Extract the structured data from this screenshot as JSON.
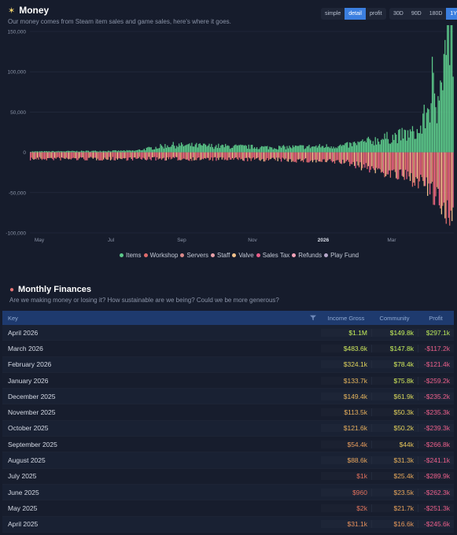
{
  "money": {
    "title": "Money",
    "subtitle": "Our money comes from Steam item sales and game sales, here's where it goes.",
    "mode_options": [
      "simple",
      "detail",
      "profit"
    ],
    "mode_selected": "detail",
    "range_options": [
      "30D",
      "90D",
      "180D",
      "1Y"
    ],
    "range_selected": "1Y"
  },
  "chart_data": {
    "type": "bar",
    "title": "",
    "y_ticks": [
      "150,000",
      "100,000",
      "50,000",
      "0",
      "-50,000",
      "-100,000"
    ],
    "x_ticks": [
      "May",
      "Jul",
      "Sep",
      "Nov",
      "2026",
      "Mar"
    ],
    "ylim": [
      -100000,
      150000
    ],
    "grid": true,
    "legend_placement": "bottom-center",
    "series": [
      {
        "name": "Items",
        "color": "#5cc98a"
      },
      {
        "name": "Workshop",
        "color": "#e06c6c"
      },
      {
        "name": "Servers",
        "color": "#d98a8a"
      },
      {
        "name": "Staff",
        "color": "#e8a0a8"
      },
      {
        "name": "Valve",
        "color": "#f2c28c"
      },
      {
        "name": "Sales Tax",
        "color": "#ec5f8a"
      },
      {
        "name": "Refunds",
        "color": "#f3a2b8"
      },
      {
        "name": "Play Fund",
        "color": "#b6a7c9"
      }
    ],
    "approx_daily_trend": [
      {
        "x": "Apr 2025",
        "income": 1000,
        "expenses": -8000
      },
      {
        "x": "Jul 2025",
        "income": 2000,
        "expenses": -8000
      },
      {
        "x": "Aug 2025",
        "income": 9000,
        "expenses": -8000
      },
      {
        "x": "Nov 2025",
        "income": 6000,
        "expenses": -9000
      },
      {
        "x": "Jan 2026",
        "income": 8000,
        "expenses": -12000
      },
      {
        "x": "Mar 2026",
        "income": 25000,
        "expenses": -35000
      },
      {
        "x": "Apr 2026",
        "income": 140000,
        "expenses": -78000
      }
    ]
  },
  "finances": {
    "title": "Monthly Finances",
    "subtitle": "Are we making money or losing it? How sustainable are we being? Could we be more generous?",
    "columns": {
      "key": "Key",
      "income": "Income Gross",
      "community": "Community",
      "profit": "Profit"
    },
    "rows": [
      {
        "month": "April 2026",
        "income": "$1.1M",
        "community": "$149.8k",
        "profit": "$297.1k",
        "ic": "#c6f05a",
        "cc": "#c6f05a",
        "pc": "#b9e85a"
      },
      {
        "month": "March 2026",
        "income": "$483.6k",
        "community": "$147.8k",
        "profit": "-$117.2k",
        "ic": "#cfe85c",
        "cc": "#c6f05a",
        "pc": "#ec5f8a"
      },
      {
        "month": "February 2026",
        "income": "$324.1k",
        "community": "$78.4k",
        "profit": "-$121.4k",
        "ic": "#e1d45c",
        "cc": "#d2e85a",
        "pc": "#ec5f8a"
      },
      {
        "month": "January 2026",
        "income": "$133.7k",
        "community": "$75.8k",
        "profit": "-$259.2k",
        "ic": "#e6b55c",
        "cc": "#d2e85a",
        "pc": "#ec5f8a"
      },
      {
        "month": "December 2025",
        "income": "$149.4k",
        "community": "$61.9k",
        "profit": "-$235.2k",
        "ic": "#e6b55c",
        "cc": "#dad85a",
        "pc": "#ec5f8a"
      },
      {
        "month": "November 2025",
        "income": "$113.5k",
        "community": "$50.3k",
        "profit": "-$235.3k",
        "ic": "#e6ae5c",
        "cc": "#e2d05a",
        "pc": "#ec5f8a"
      },
      {
        "month": "October 2025",
        "income": "$121.6k",
        "community": "$50.2k",
        "profit": "-$239.3k",
        "ic": "#e6ae5c",
        "cc": "#e2d05a",
        "pc": "#ec5f8a"
      },
      {
        "month": "September 2025",
        "income": "$54.4k",
        "community": "$44k",
        "profit": "-$266.8k",
        "ic": "#e69c5c",
        "cc": "#e6c45a",
        "pc": "#ec5f8a"
      },
      {
        "month": "August 2025",
        "income": "$88.6k",
        "community": "$31.3k",
        "profit": "-$241.1k",
        "ic": "#e6a45c",
        "cc": "#e6b05a",
        "pc": "#ec5f8a"
      },
      {
        "month": "July 2025",
        "income": "$1k",
        "community": "$25.4k",
        "profit": "-$289.9k",
        "ic": "#e0705c",
        "cc": "#e6a85a",
        "pc": "#ec5f8a"
      },
      {
        "month": "June 2025",
        "income": "$960",
        "community": "$23.5k",
        "profit": "-$262.3k",
        "ic": "#e0705c",
        "cc": "#e6a45a",
        "pc": "#ec5f8a"
      },
      {
        "month": "May 2025",
        "income": "$2k",
        "community": "$21.7k",
        "profit": "-$251.3k",
        "ic": "#e0745c",
        "cc": "#e6a05a",
        "pc": "#ec5f8a"
      },
      {
        "month": "April 2025",
        "income": "$31.1k",
        "community": "$16.6k",
        "profit": "-$245.6k",
        "ic": "#e6905c",
        "cc": "#e6985a",
        "pc": "#ec5f8a"
      }
    ]
  }
}
